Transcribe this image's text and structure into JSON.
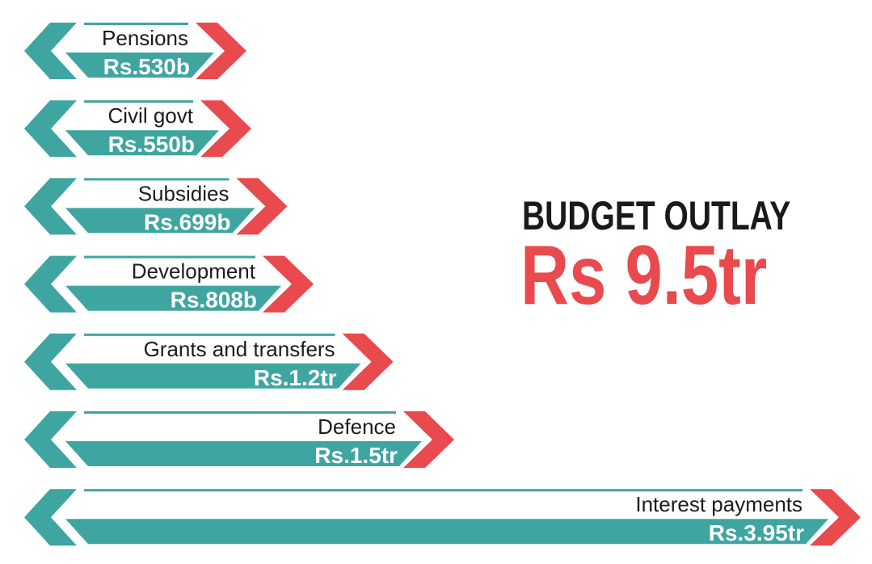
{
  "header": {
    "title": "BUDGET OUTLAY",
    "total": "Rs 9.5tr"
  },
  "colors": {
    "teal": "#3fa5a0",
    "red": "#e84a4d",
    "text": "#1c1c1c"
  },
  "chart_data": {
    "type": "bar",
    "title": "BUDGET OUTLAY Rs 9.5tr",
    "unit": "Rs billion",
    "categories": [
      "Pensions",
      "Civil govt",
      "Subsidies",
      "Development",
      "Grants and transfers",
      "Defence",
      "Interest payments"
    ],
    "values": [
      530,
      550,
      699,
      808,
      1200,
      1500,
      3950
    ],
    "value_labels": [
      "Rs.530b",
      "Rs.550b",
      "Rs.699b",
      "Rs.808b",
      "Rs.1.2tr",
      "Rs.1.5tr",
      "Rs.3.95tr"
    ]
  }
}
